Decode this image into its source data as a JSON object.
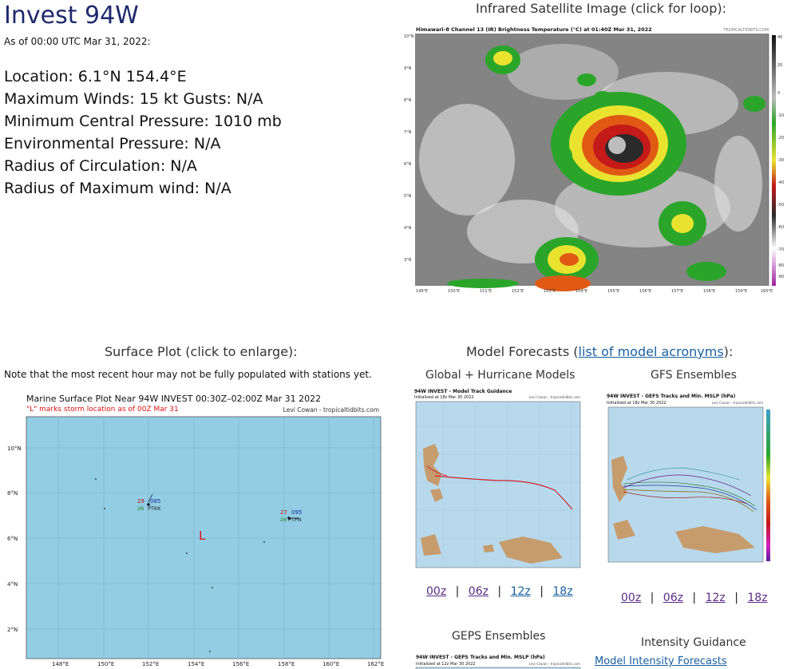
{
  "storm": {
    "name": "Invest 94W",
    "as_of": "As of 00:00 UTC Mar 31, 2022:",
    "location": "Location: 6.1°N 154.4°E",
    "winds": "Maximum Winds: 15 kt  Gusts: N/A",
    "pressure": "Minimum Central Pressure: 1010 mb",
    "env_pressure": "Environmental Pressure: N/A",
    "radius_circ": "Radius of Circulation: N/A",
    "radius_max": "Radius of Maximum wind: N/A"
  },
  "satellite": {
    "heading": "Infrared Satellite Image (click for loop):",
    "title": "Himawari-8 Channel 13 (IR) Brightness Temperature (°C) at 01:40Z Mar 31, 2022",
    "credit": "TROPICALTIDBITS.COM",
    "lat_labels": [
      "10°N",
      "9°N",
      "8°N",
      "7°N",
      "6°N",
      "5°N",
      "4°N",
      "3°N"
    ],
    "lon_labels": [
      "149°E",
      "150°E",
      "151°E",
      "152°E",
      "153°E",
      "154°E",
      "155°E",
      "156°E",
      "157°E",
      "158°E",
      "159°E",
      "160°E"
    ],
    "colorbar_labels": [
      "40",
      "20",
      "0",
      "-10",
      "-20",
      "-30",
      "-40",
      "-50",
      "-60",
      "-70",
      "-80",
      "-90"
    ]
  },
  "surface": {
    "heading": "Surface Plot (click to enlarge):",
    "note": "Note that the most recent hour may not be fully populated with stations yet.",
    "title": "Marine Surface Plot Near 94W INVEST 00:30Z–02:00Z Mar 31 2022",
    "subtitle": "\"L\" marks storm location as of 00Z Mar 31",
    "credit": "Levi Cowan - tropicaltidbits.com",
    "storm_marker": "L",
    "lat_labels": [
      "10°N",
      "8°N",
      "6°N",
      "4°N",
      "2°N"
    ],
    "lon_labels": [
      "148°E",
      "150°E",
      "152°E",
      "154°E",
      "156°E",
      "158°E",
      "160°E",
      "162°E"
    ],
    "stations": [
      {
        "temp": "29",
        "pressure": "085",
        "dew": "26",
        "id": "PTKK"
      },
      {
        "temp": "27",
        "pressure": "095",
        "dew": "26",
        "id": "PTPN"
      }
    ]
  },
  "models": {
    "heading_prefix": "Model Forecasts (",
    "heading_link": "list of model acronyms",
    "heading_suffix": "):",
    "global_title": "Global + Hurricane Models",
    "gfs_title": "GFS Ensembles",
    "geps_title": "GEPS Ensembles",
    "intensity_title": "Intensity Guidance",
    "intensity_link": "Model Intensity Forecasts",
    "global_img_title": "94W INVEST - Model Track Guidance",
    "global_img_sub": "Initialized at 18z Mar 30 2022",
    "gfs_img_title": "94W INVEST - GEFS Tracks and Min. MSLP (hPa)",
    "gfs_img_sub": "Initialized at 18z Mar 30 2022",
    "geps_img_title": "94W INVEST - GEPS Tracks and Min. MSLP (hPa)",
    "geps_img_sub": "Initialized at 12z Mar 30 2022",
    "img_credit": "Levi Cowan - tropicaltidbits.com",
    "run_links": [
      "00z",
      "06z",
      "12z",
      "18z"
    ],
    "separator": "|"
  }
}
